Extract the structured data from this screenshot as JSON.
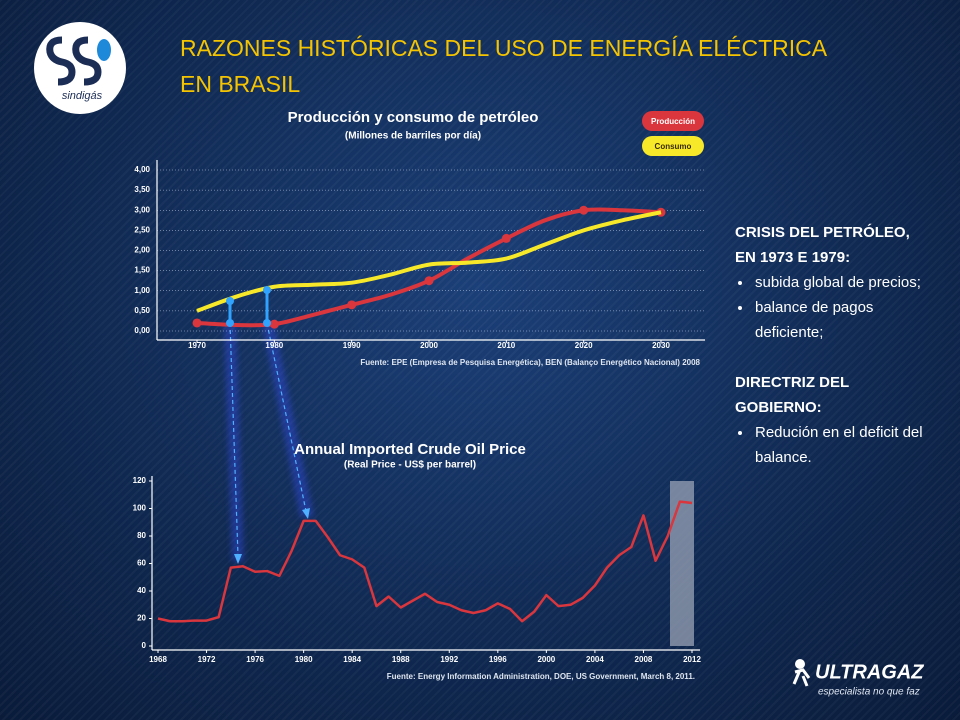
{
  "slide": {
    "title_lines": [
      "RAZONES HISTÓRICAS DEL USO DE ENERGÍA ELÉCTRICA",
      "EN BRASIL"
    ],
    "logo_text": "sindigás",
    "brand": "ULTRAGAZ",
    "brand_tagline": "especialista no que faz",
    "sections": [
      {
        "heading": "CRISIS DEL PETRÓLEO, EN 1973 E 1979:",
        "bullets": [
          "subida global de precios;",
          "balance de pagos deficiente;"
        ]
      },
      {
        "heading": "DIRECTRIZ DEL GOBIERNO:",
        "bullets": [
          "Redución en el deficit del balance."
        ]
      }
    ]
  },
  "chart_data": [
    {
      "type": "line",
      "title": "Producción y consumo de petróleo",
      "subtitle": "(Millones de barriles por día)",
      "source": "Fuente: EPE (Empresa de Pesquisa Energética), BEN  (Balanço Energético Nacional) 2008",
      "x": [
        1970,
        1975,
        1980,
        1985,
        1990,
        1995,
        2000,
        2005,
        2010,
        2015,
        2020,
        2025,
        2030
      ],
      "series": [
        {
          "name": "Producción",
          "color": "#d9363e",
          "values": [
            0.2,
            0.15,
            0.17,
            0.4,
            0.65,
            0.9,
            1.25,
            1.8,
            2.3,
            2.75,
            3.0,
            3.0,
            2.95
          ]
        },
        {
          "name": "Consumo",
          "color": "#f7e92a",
          "values": [
            0.5,
            0.85,
            1.1,
            1.15,
            1.2,
            1.4,
            1.65,
            1.7,
            1.8,
            2.15,
            2.5,
            2.75,
            2.95
          ]
        }
      ],
      "xlim": [
        1970,
        2030
      ],
      "xticks": [
        1970,
        1980,
        1990,
        2000,
        2010,
        2020,
        2030
      ],
      "ylim": [
        0,
        4
      ],
      "yticks": [
        {
          "value": 0,
          "label": "0,00"
        },
        {
          "value": 0.5,
          "label": "0,50"
        },
        {
          "value": 1,
          "label": "1,00"
        },
        {
          "value": 1.5,
          "label": "1,50"
        },
        {
          "value": 2,
          "label": "2,00"
        },
        {
          "value": 2.5,
          "label": "2,50"
        },
        {
          "value": 3,
          "label": "3,00"
        },
        {
          "value": 3.5,
          "label": "3,50"
        },
        {
          "value": 4,
          "label": "4,00"
        }
      ],
      "grid": true,
      "legend": "top-right"
    },
    {
      "type": "line",
      "title": "Annual Imported Crude Oil Price",
      "subtitle": "(Real Price - US$ per barrel)",
      "source": "Fuente: Energy Information Administration, DOE, US Government, March 8, 2011.",
      "x": [
        1968,
        1969,
        1970,
        1971,
        1972,
        1973,
        1974,
        1975,
        1976,
        1977,
        1978,
        1979,
        1980,
        1981,
        1982,
        1983,
        1984,
        1985,
        1986,
        1987,
        1988,
        1989,
        1990,
        1991,
        1992,
        1993,
        1994,
        1995,
        1996,
        1997,
        1998,
        1999,
        2000,
        2001,
        2002,
        2003,
        2004,
        2005,
        2006,
        2007,
        2008,
        2009,
        2010,
        2011,
        2012
      ],
      "series": [
        {
          "color": "#d9363e",
          "values": [
            20,
            18,
            18,
            18.5,
            18.5,
            21,
            57,
            58,
            54,
            54.5,
            51,
            69,
            91,
            91,
            79,
            66,
            63,
            57,
            29,
            36,
            28,
            33,
            38,
            32,
            30,
            26,
            24,
            26,
            31,
            27,
            18,
            25,
            37,
            29,
            30,
            35,
            44,
            57,
            66,
            72,
            95,
            62,
            80,
            105,
            104
          ]
        }
      ],
      "xlim": [
        1968,
        2012
      ],
      "xticks": [
        1968,
        1972,
        1976,
        1980,
        1984,
        1988,
        1992,
        1996,
        2000,
        2004,
        2008,
        2012
      ],
      "ylim": [
        0,
        120
      ],
      "yticks": [
        0,
        20,
        40,
        60,
        80,
        100,
        120
      ],
      "grid": false
    }
  ]
}
